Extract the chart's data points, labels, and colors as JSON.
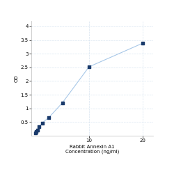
{
  "x": [
    0,
    0.156,
    0.313,
    0.625,
    1.25,
    2.5,
    5,
    10,
    20
  ],
  "y": [
    0.105,
    0.158,
    0.21,
    0.32,
    0.47,
    0.67,
    1.2,
    2.52,
    3.38
  ],
  "line_color": "#a8c8e8",
  "marker_color": "#1a3a6b",
  "marker_size": 10,
  "xlabel_line1": "Rabbit Annexin A1",
  "xlabel_line2": "Concentration (ng/ml)",
  "ylabel": "OD",
  "xlim": [
    -0.8,
    22
  ],
  "ylim": [
    0,
    4.2
  ],
  "yticks": [
    0.5,
    1.0,
    1.5,
    2.0,
    2.5,
    3.0,
    3.5,
    4.0
  ],
  "ytick_labels": [
    "0.5",
    "1",
    "1.5",
    "2",
    "2.5",
    "3",
    "3.5",
    "4"
  ],
  "xticks": [
    10,
    20
  ],
  "xtick_labels": [
    "10",
    "20"
  ],
  "grid_color": "#d8e4f0",
  "bg_color": "#ffffff",
  "label_fontsize": 5,
  "tick_fontsize": 5,
  "spine_color": "#bbbbbb"
}
